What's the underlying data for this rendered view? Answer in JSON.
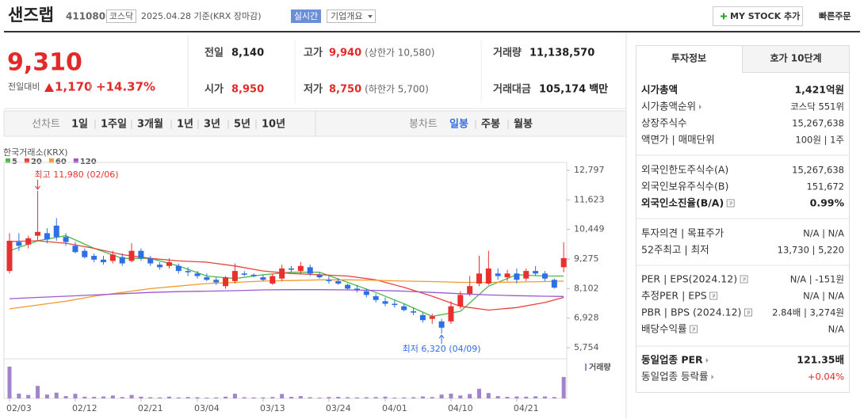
{
  "header": {
    "name": "샌즈랩",
    "code": "411080",
    "market": "코스닥",
    "date": "2025.04.28 기준(KRX 장마감)",
    "realtime": "실시간",
    "overview": "기업개요",
    "mystock": "MY STOCK 추가",
    "quick_order": "빠른주문"
  },
  "quote": {
    "price": "9,310",
    "change_label": "전일대비",
    "change": "1,170",
    "change_pct": "+14.37%",
    "items": [
      {
        "label": "전일",
        "value": "8,140"
      },
      {
        "label": "고가",
        "value": "9,940",
        "note": "(상한가 10,580)"
      },
      {
        "label": "거래량",
        "value": "11,138,570"
      },
      {
        "label": "시가",
        "value": "8,950"
      },
      {
        "label": "저가",
        "value": "8,750",
        "note": "(하한가 5,700)"
      },
      {
        "label": "거래대금",
        "value": "105,174",
        "unit": "백만"
      }
    ]
  },
  "chart_menu": {
    "line_label": "선차트",
    "line_periods": [
      "1일",
      "1주일",
      "3개월",
      "1년",
      "3년",
      "5년",
      "10년"
    ],
    "candle_label": "봉차트",
    "candle_periods": [
      "일봉",
      "주봉",
      "월봉"
    ]
  },
  "chart_data": {
    "type": "candlestick",
    "source": "한국거래소(KRX)",
    "high_note": "최고 11,980 (02/06)",
    "low_note": "최저 6,320 (04/09)",
    "volume_label": "거래량",
    "categories": [
      "02/03",
      null,
      null,
      null,
      null,
      null,
      null,
      "02/12",
      null,
      null,
      null,
      null,
      null,
      null,
      "02/21",
      null,
      null,
      null,
      null,
      null,
      "03/04",
      null,
      null,
      null,
      null,
      null,
      null,
      "03/13",
      null,
      null,
      null,
      null,
      null,
      null,
      "03/24",
      null,
      null,
      null,
      null,
      null,
      "04/01",
      null,
      null,
      null,
      null,
      null,
      null,
      "04/10",
      null,
      null,
      null,
      null,
      null,
      null,
      "04/21",
      null,
      null,
      null,
      null,
      null
    ],
    "open": [
      8800,
      9950,
      9850,
      10200,
      10300,
      10600,
      10150,
      9800,
      9600,
      9400,
      9250,
      9200,
      9350,
      9200,
      9600,
      9300,
      9050,
      9000,
      9000,
      8800,
      8700,
      8550,
      8450,
      8200,
      8400,
      8700,
      8650,
      8550,
      8300,
      8500,
      8900,
      8800,
      8950,
      8650,
      8450,
      8400,
      8250,
      8100,
      8000,
      7800,
      7600,
      7500,
      7400,
      7200,
      7050,
      6900,
      6800,
      6800,
      7400,
      7900,
      8300,
      8300,
      8700,
      8550,
      8700,
      8500,
      8800,
      8700,
      8450,
      8950
    ],
    "high": [
      10300,
      10300,
      10200,
      11980,
      10500,
      10900,
      10300,
      9950,
      9700,
      9500,
      9400,
      9600,
      9500,
      9900,
      9700,
      9400,
      9150,
      9300,
      9100,
      8950,
      8800,
      8700,
      8550,
      8600,
      9100,
      8800,
      8700,
      8650,
      8700,
      9050,
      9000,
      9150,
      9050,
      8750,
      8600,
      8500,
      8300,
      8250,
      8100,
      7900,
      7750,
      7650,
      7500,
      7350,
      7150,
      7100,
      6900,
      7600,
      8000,
      8600,
      9400,
      9600,
      8900,
      8850,
      8900,
      8900,
      9000,
      8800,
      8500,
      9940
    ],
    "low": [
      8700,
      9600,
      9700,
      10000,
      9900,
      10000,
      9800,
      9500,
      9300,
      9150,
      9050,
      9100,
      9000,
      9150,
      9200,
      9000,
      8850,
      8900,
      8700,
      8600,
      8500,
      8400,
      8250,
      8100,
      8300,
      8600,
      8550,
      8400,
      8250,
      8400,
      8750,
      8700,
      8600,
      8500,
      8300,
      8250,
      8050,
      7950,
      7750,
      7550,
      7400,
      7350,
      7200,
      7050,
      6750,
      6700,
      6320,
      6700,
      7300,
      7800,
      8200,
      8250,
      8450,
      8400,
      8300,
      8400,
      8600,
      8400,
      8100,
      8750
    ],
    "close": [
      10000,
      9800,
      10100,
      10350,
      10050,
      10150,
      9950,
      9550,
      9350,
      9250,
      9150,
      9450,
      9100,
      9600,
      9300,
      9100,
      8950,
      9150,
      8800,
      8750,
      8600,
      8450,
      8350,
      8550,
      8800,
      8650,
      8600,
      8450,
      8600,
      8900,
      8850,
      9000,
      8700,
      8550,
      8400,
      8300,
      8100,
      8050,
      7850,
      7650,
      7500,
      7450,
      7250,
      7150,
      6850,
      7000,
      6550,
      7400,
      7850,
      8200,
      8700,
      8900,
      8600,
      8700,
      8450,
      8800,
      8700,
      8500,
      8140,
      9310
    ],
    "volume": [
      16500000,
      2500000,
      1800000,
      6500000,
      2000000,
      3000000,
      1200000,
      2400000,
      900000,
      800000,
      1000000,
      1500000,
      700000,
      1800000,
      900000,
      600000,
      500000,
      900000,
      500000,
      700000,
      600000,
      400000,
      500000,
      900000,
      2400000,
      600000,
      500000,
      500000,
      700000,
      2300000,
      800000,
      1200000,
      600000,
      400000,
      700000,
      800000,
      600000,
      500000,
      600000,
      700000,
      900000,
      400000,
      500000,
      600000,
      1000000,
      700000,
      2000000,
      2500000,
      1500000,
      2300000,
      5000000,
      2800000,
      1200000,
      800000,
      1000000,
      900000,
      1100000,
      1000000,
      700000,
      11138570
    ],
    "up_color": "#e8312f",
    "down_color": "#2f6fe4",
    "volume_color": "#a283cc",
    "ylim": [
      5410,
      13110
    ],
    "yticks": [
      {
        "value": 5754,
        "label": "5,754"
      },
      {
        "value": 6928,
        "label": "6,928"
      },
      {
        "value": 8102,
        "label": "8,102"
      },
      {
        "value": 9275,
        "label": "9,275"
      },
      {
        "value": 10449,
        "label": "10,449"
      },
      {
        "value": 11623,
        "label": "11,623"
      },
      {
        "value": 12797,
        "label": "12,797"
      }
    ],
    "volume_ylim": [
      0,
      18500000
    ],
    "ma": [
      {
        "name": "5",
        "color": "#4cb84c",
        "x": [
          0,
          3,
          6,
          9,
          12,
          15,
          18,
          21,
          24,
          27,
          30,
          33,
          36,
          39,
          42,
          45,
          48,
          51,
          54,
          57,
          59
        ],
        "values": [
          9600,
          10000,
          10200,
          9700,
          9300,
          9300,
          9000,
          8600,
          8500,
          8650,
          8750,
          8750,
          8350,
          7950,
          7500,
          7000,
          7200,
          8200,
          8650,
          8600,
          8600
        ]
      },
      {
        "name": "20",
        "color": "#e8433b",
        "x": [
          0,
          3,
          6,
          9,
          12,
          15,
          18,
          21,
          24,
          27,
          30,
          33,
          36,
          39,
          42,
          45,
          48,
          51,
          54,
          57,
          59
        ],
        "values": [
          9970,
          10000,
          9900,
          9700,
          9450,
          9300,
          9200,
          9150,
          9000,
          8800,
          8700,
          8650,
          8600,
          8450,
          8150,
          7800,
          7400,
          7250,
          7350,
          7550,
          7750
        ]
      },
      {
        "name": "60",
        "color": "#f39a2e",
        "x": [
          0,
          3,
          6,
          9,
          12,
          15,
          18,
          21,
          24,
          27,
          30,
          33,
          36,
          39,
          42,
          45,
          48,
          51,
          54,
          57,
          59
        ],
        "values": [
          7300,
          7450,
          7600,
          7800,
          7950,
          8100,
          8200,
          8300,
          8350,
          8400,
          8420,
          8450,
          8450,
          8430,
          8400,
          8380,
          8350,
          8350,
          8360,
          8380,
          8400
        ]
      },
      {
        "name": "120",
        "color": "#9b59d0",
        "x": [
          0,
          3,
          6,
          9,
          12,
          15,
          18,
          21,
          24,
          27,
          30,
          33,
          36,
          39,
          42,
          45,
          48,
          51,
          54,
          57,
          59
        ],
        "values": [
          7700,
          7750,
          7800,
          7850,
          7900,
          7950,
          7980,
          8000,
          8020,
          8050,
          8060,
          8060,
          8050,
          8030,
          8000,
          7950,
          7900,
          7850,
          7820,
          7800,
          7790
        ]
      }
    ]
  },
  "side": {
    "tabs": [
      "투자정보",
      "호가 10단계"
    ],
    "groups": [
      [
        {
          "label": "시가총액",
          "value": "1,421억원"
        },
        {
          "label": "시가총액순위",
          "value": "코스닥 551위"
        },
        {
          "label": "상장주식수",
          "value": "15,267,638"
        },
        {
          "label": "액면가 | 매매단위",
          "value": "100원 | 1주"
        }
      ],
      [
        {
          "label": "외국인한도주식수(A)",
          "value": "15,267,638"
        },
        {
          "label": "외국인보유주식수(B)",
          "value": "151,672"
        },
        {
          "label": "외국인소진율(B/A)",
          "value": "0.99%"
        }
      ],
      [
        {
          "label": "투자의견 | 목표주가",
          "value": "N/A | N/A"
        },
        {
          "label": "52주최고 | 최저",
          "value": "13,730 | 5,220"
        }
      ],
      [
        {
          "label": "PER | EPS(2024.12)",
          "value": "N/A | -151원"
        },
        {
          "label": "추정PER | EPS",
          "value": "N/A | N/A"
        },
        {
          "label": "PBR | BPS (2024.12)",
          "value": "2.84배 | 3,274원"
        },
        {
          "label": "배당수익률",
          "value": "N/A"
        }
      ],
      [
        {
          "label": "동일업종 PER",
          "value": "121.35배"
        },
        {
          "label": "동일업종 등락률",
          "value": "+0.04%"
        }
      ]
    ]
  }
}
